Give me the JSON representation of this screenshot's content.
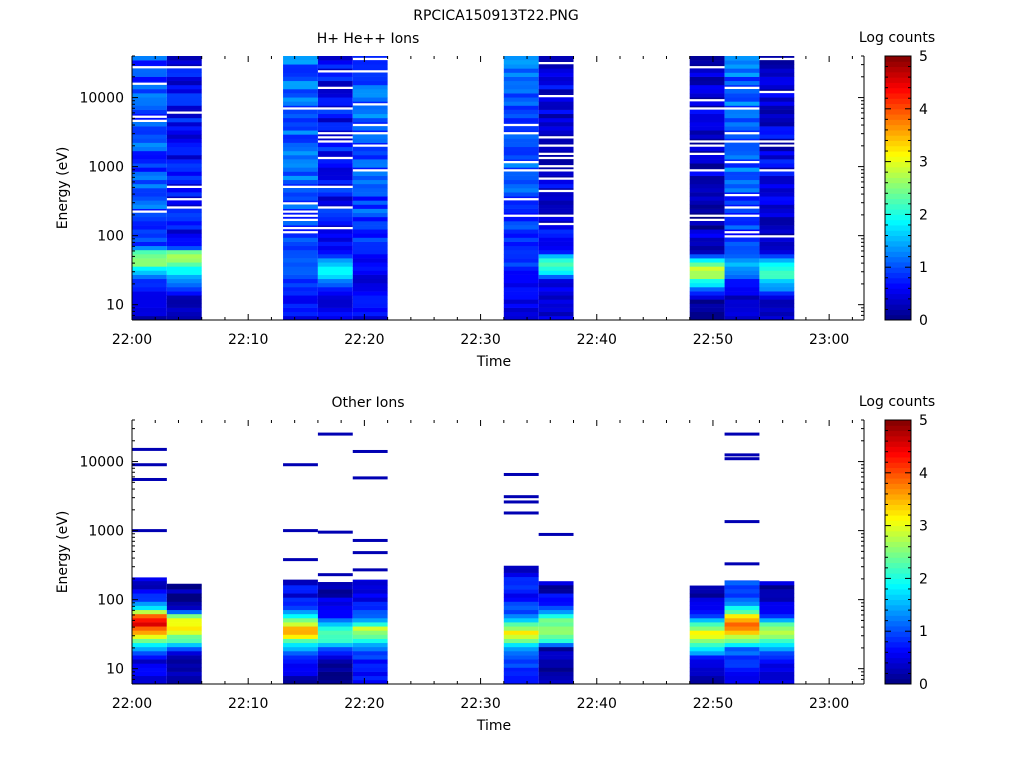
{
  "figure": {
    "title": "RPCICA150913T22.PNG"
  },
  "chart_data": [
    {
      "type": "heatmap",
      "title": "H+ He++ Ions",
      "xlabel": "Time",
      "ylabel": "Energy (eV)",
      "yscale": "log",
      "x_ticks": [
        "22:00",
        "22:10",
        "22:20",
        "22:30",
        "22:40",
        "22:50",
        "23:00"
      ],
      "y_ticks": [
        "10",
        "100",
        "1000",
        "10000"
      ],
      "xlim": [
        "22:00",
        "23:03"
      ],
      "ylim": [
        6,
        40000
      ],
      "colorbar": {
        "label": "Log counts",
        "ticks": [
          "0",
          "1",
          "2",
          "3",
          "4",
          "5"
        ],
        "range": [
          0,
          5
        ],
        "colormap": "jet"
      },
      "series": [
        {
          "x_start": "22:00",
          "x_end": "22:03",
          "profile": [
            [
              6,
              0.3
            ],
            [
              12,
              0.6
            ],
            [
              22,
              0.8
            ],
            [
              30,
              1.5
            ],
            [
              40,
              2.7
            ],
            [
              55,
              2.5
            ],
            [
              70,
              0.9
            ],
            [
              150,
              1.0
            ],
            [
              1000,
              1.0
            ],
            [
              10000,
              1.0
            ],
            [
              40000,
              1.0
            ]
          ]
        },
        {
          "x_start": "22:03",
          "x_end": "22:06",
          "profile": [
            [
              6,
              0.2
            ],
            [
              12,
              0.3
            ],
            [
              22,
              1.2
            ],
            [
              30,
              1.8
            ],
            [
              40,
              2.5
            ],
            [
              55,
              2.7
            ],
            [
              70,
              0.6
            ],
            [
              150,
              0.6
            ],
            [
              1000,
              0.6
            ],
            [
              10000,
              0.6
            ],
            [
              40000,
              0.5
            ]
          ]
        },
        {
          "x_start": "22:13",
          "x_end": "22:16",
          "profile": [
            [
              6,
              0.6
            ],
            [
              12,
              0.7
            ],
            [
              22,
              0.9
            ],
            [
              30,
              1.2
            ],
            [
              40,
              1.0
            ],
            [
              60,
              0.9
            ],
            [
              100,
              1.0
            ],
            [
              1000,
              1.1
            ],
            [
              10000,
              1.1
            ],
            [
              40000,
              1.1
            ]
          ]
        },
        {
          "x_start": "22:16",
          "x_end": "22:19",
          "profile": [
            [
              6,
              0.6
            ],
            [
              12,
              0.5
            ],
            [
              22,
              1.2
            ],
            [
              30,
              1.9
            ],
            [
              40,
              1.7
            ],
            [
              60,
              0.6
            ],
            [
              100,
              0.6
            ],
            [
              1000,
              0.7
            ],
            [
              10000,
              0.6
            ],
            [
              40000,
              0.6
            ]
          ]
        },
        {
          "x_start": "22:19",
          "x_end": "22:22",
          "profile": [
            [
              6,
              0.5
            ],
            [
              12,
              0.9
            ],
            [
              22,
              0.4
            ],
            [
              30,
              0.7
            ],
            [
              40,
              0.6
            ],
            [
              60,
              0.8
            ],
            [
              100,
              0.9
            ],
            [
              1000,
              1.0
            ],
            [
              10000,
              1.1
            ],
            [
              40000,
              1.1
            ]
          ]
        },
        {
          "x_start": "22:32",
          "x_end": "22:35",
          "profile": [
            [
              6,
              0.5
            ],
            [
              12,
              0.5
            ],
            [
              22,
              0.6
            ],
            [
              30,
              0.7
            ],
            [
              40,
              0.9
            ],
            [
              60,
              0.8
            ],
            [
              100,
              0.9
            ],
            [
              1000,
              1.1
            ],
            [
              10000,
              1.1
            ],
            [
              40000,
              1.1
            ]
          ]
        },
        {
          "x_start": "22:35",
          "x_end": "22:38",
          "profile": [
            [
              10,
              0.4
            ],
            [
              22,
              0.5
            ],
            [
              30,
              2.0
            ],
            [
              45,
              2.2
            ],
            [
              60,
              0.6
            ],
            [
              100,
              0.5
            ],
            [
              1000,
              0.5
            ],
            [
              10000,
              0.5
            ],
            [
              40000,
              0.5
            ]
          ]
        },
        {
          "x_start": "22:48",
          "x_end": "22:51",
          "profile": [
            [
              6,
              0.1
            ],
            [
              12,
              0.2
            ],
            [
              20,
              1.7
            ],
            [
              25,
              2.5
            ],
            [
              35,
              3.0
            ],
            [
              45,
              1.6
            ],
            [
              60,
              0.3
            ],
            [
              100,
              0.3
            ],
            [
              1000,
              0.4
            ],
            [
              10000,
              0.4
            ],
            [
              40000,
              0.4
            ]
          ]
        },
        {
          "x_start": "22:51",
          "x_end": "22:54",
          "profile": [
            [
              6,
              0.4
            ],
            [
              12,
              0.3
            ],
            [
              22,
              0.8
            ],
            [
              30,
              1.3
            ],
            [
              40,
              1.5
            ],
            [
              60,
              1.1
            ],
            [
              100,
              0.9
            ],
            [
              1000,
              1.1
            ],
            [
              10000,
              1.1
            ],
            [
              40000,
              1.1
            ]
          ]
        },
        {
          "x_start": "22:54",
          "x_end": "22:57",
          "profile": [
            [
              6,
              0.4
            ],
            [
              12,
              0.4
            ],
            [
              22,
              1.8
            ],
            [
              30,
              2.3
            ],
            [
              40,
              2.0
            ],
            [
              60,
              0.4
            ],
            [
              100,
              0.4
            ],
            [
              1000,
              0.5
            ],
            [
              10000,
              0.4
            ],
            [
              40000,
              0.5
            ]
          ]
        }
      ]
    },
    {
      "type": "heatmap",
      "title": "Other Ions",
      "xlabel": "Time",
      "ylabel": "Energy (eV)",
      "yscale": "log",
      "x_ticks": [
        "22:00",
        "22:10",
        "22:20",
        "22:30",
        "22:40",
        "22:50",
        "23:00"
      ],
      "y_ticks": [
        "10",
        "100",
        "1000",
        "10000"
      ],
      "xlim": [
        "22:00",
        "23:03"
      ],
      "ylim": [
        6,
        40000
      ],
      "colorbar": {
        "label": "Log counts",
        "ticks": [
          "0",
          "1",
          "2",
          "3",
          "4",
          "5"
        ],
        "range": [
          0,
          5
        ],
        "colormap": "jet"
      },
      "series": [
        {
          "x_start": "22:00",
          "x_end": "22:03",
          "top": 210,
          "profile": [
            [
              6,
              0.5
            ],
            [
              9,
              0.6
            ],
            [
              12,
              0.4
            ],
            [
              16,
              0.7
            ],
            [
              20,
              1.6
            ],
            [
              27,
              2.5
            ],
            [
              35,
              3.7
            ],
            [
              45,
              4.5
            ],
            [
              55,
              4.3
            ],
            [
              70,
              2.2
            ],
            [
              90,
              1.1
            ],
            [
              130,
              0.6
            ],
            [
              210,
              0.4
            ]
          ],
          "lines": [
            1000,
            5500,
            9000,
            15000
          ]
        },
        {
          "x_start": "22:03",
          "x_end": "22:06",
          "top": 170,
          "profile": [
            [
              6,
              0.2
            ],
            [
              10,
              0.2
            ],
            [
              15,
              0.1
            ],
            [
              20,
              1.1
            ],
            [
              25,
              2.1
            ],
            [
              32,
              2.8
            ],
            [
              40,
              3.2
            ],
            [
              55,
              3.0
            ],
            [
              70,
              0.6
            ],
            [
              100,
              0.2
            ],
            [
              170,
              0.1
            ]
          ],
          "lines": []
        },
        {
          "x_start": "22:13",
          "x_end": "22:16",
          "top": 195,
          "profile": [
            [
              6,
              0.2
            ],
            [
              10,
              0.5
            ],
            [
              14,
              0.9
            ],
            [
              20,
              1.5
            ],
            [
              25,
              2.3
            ],
            [
              30,
              3.2
            ],
            [
              35,
              3.7
            ],
            [
              40,
              3.2
            ],
            [
              55,
              2.0
            ],
            [
              70,
              1.2
            ],
            [
              100,
              0.7
            ],
            [
              195,
              0.6
            ]
          ],
          "lines": [
            380,
            1000,
            9000
          ]
        },
        {
          "x_start": "22:16",
          "x_end": "22:19",
          "top": 180,
          "profile": [
            [
              9,
              0.1
            ],
            [
              12,
              0.2
            ],
            [
              20,
              1.1
            ],
            [
              25,
              2.0
            ],
            [
              32,
              2.5
            ],
            [
              40,
              2.1
            ],
            [
              55,
              0.7
            ],
            [
              90,
              0.3
            ],
            [
              180,
              0.2
            ]
          ],
          "lines": [
            230,
            950,
            25000
          ]
        },
        {
          "x_start": "22:19",
          "x_end": "22:22",
          "top": 195,
          "profile": [
            [
              6,
              0.6
            ],
            [
              12,
              0.7
            ],
            [
              18,
              1.0
            ],
            [
              24,
              1.8
            ],
            [
              30,
              2.5
            ],
            [
              40,
              2.8
            ],
            [
              50,
              1.4
            ],
            [
              70,
              0.8
            ],
            [
              100,
              0.6
            ],
            [
              195,
              0.4
            ]
          ],
          "lines": [
            270,
            480,
            720,
            5800,
            14000
          ]
        },
        {
          "x_start": "22:32",
          "x_end": "22:35",
          "top": 310,
          "profile": [
            [
              6,
              0.7
            ],
            [
              14,
              1.0
            ],
            [
              20,
              1.4
            ],
            [
              25,
              2.3
            ],
            [
              32,
              3.4
            ],
            [
              40,
              2.6
            ],
            [
              55,
              1.2
            ],
            [
              90,
              0.9
            ],
            [
              150,
              0.7
            ],
            [
              310,
              0.3
            ]
          ],
          "lines": [
            1800,
            2600,
            3100,
            6500
          ]
        },
        {
          "x_start": "22:35",
          "x_end": "22:38",
          "top": 185,
          "profile": [
            [
              20,
              0.2
            ],
            [
              25,
              2.2
            ],
            [
              35,
              2.6
            ],
            [
              50,
              2.4
            ],
            [
              70,
              1.3
            ],
            [
              100,
              0.5
            ],
            [
              185,
              0.2
            ]
          ],
          "lines": [
            880
          ]
        },
        {
          "x_start": "22:48",
          "x_end": "22:51",
          "top": 160,
          "profile": [
            [
              9,
              0.2
            ],
            [
              13,
              0.4
            ],
            [
              20,
              2.0
            ],
            [
              25,
              2.6
            ],
            [
              32,
              3.4
            ],
            [
              40,
              2.4
            ],
            [
              55,
              1.2
            ],
            [
              75,
              0.6
            ],
            [
              100,
              0.4
            ],
            [
              160,
              0.2
            ]
          ],
          "lines": []
        },
        {
          "x_start": "22:51",
          "x_end": "22:54",
          "top": 190,
          "profile": [
            [
              9,
              0.6
            ],
            [
              14,
              0.9
            ],
            [
              20,
              1.2
            ],
            [
              26,
              2.4
            ],
            [
              32,
              3.2
            ],
            [
              40,
              4.0
            ],
            [
              55,
              3.3
            ],
            [
              70,
              2.2
            ],
            [
              100,
              1.0
            ],
            [
              190,
              0.8
            ]
          ],
          "lines": [
            330,
            1350,
            11000,
            12500,
            25000
          ]
        },
        {
          "x_start": "22:54",
          "x_end": "22:57",
          "top": 185,
          "profile": [
            [
              6,
              0.5
            ],
            [
              12,
              0.6
            ],
            [
              18,
              1.2
            ],
            [
              25,
              2.1
            ],
            [
              32,
              2.8
            ],
            [
              40,
              2.6
            ],
            [
              55,
              1.1
            ],
            [
              75,
              0.5
            ],
            [
              120,
              0.3
            ],
            [
              185,
              0.2
            ]
          ],
          "lines": []
        }
      ]
    }
  ]
}
